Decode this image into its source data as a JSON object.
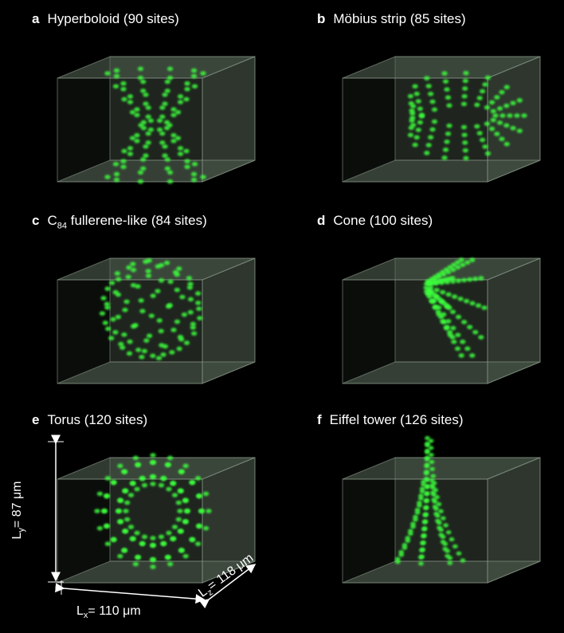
{
  "panels": [
    {
      "letter": "a",
      "title": "Hyperboloid (90 sites)",
      "shape": "hyperboloid",
      "sites": 90
    },
    {
      "letter": "b",
      "title": "Möbius strip (85 sites)",
      "shape": "mobius",
      "sites": 85
    },
    {
      "letter": "c",
      "title_prefix": "C",
      "title_sub": "84",
      "title_suffix": " fullerene-like (84 sites)",
      "shape": "fullerene",
      "sites": 84
    },
    {
      "letter": "d",
      "title": "Cone (100 sites)",
      "shape": "cone",
      "sites": 100
    },
    {
      "letter": "e",
      "title": "Torus (120 sites)",
      "shape": "torus",
      "sites": 120
    },
    {
      "letter": "f",
      "title": "Eiffel tower (126 sites)",
      "shape": "eiffel",
      "sites": 126
    }
  ],
  "dimensions": {
    "ly": {
      "sym": "L",
      "sub": "y",
      "value": "= 87 μm"
    },
    "lx": {
      "sym": "L",
      "sub": "x",
      "value": "= 110 μm"
    },
    "lz": {
      "sym": "L",
      "sub": "z",
      "value": "= 118 μm"
    }
  },
  "colors": {
    "dot": "#3cff3c",
    "box_face": "#5a6a5a",
    "box_edge": "#8a9a8a",
    "arrow": "#ffffff"
  }
}
